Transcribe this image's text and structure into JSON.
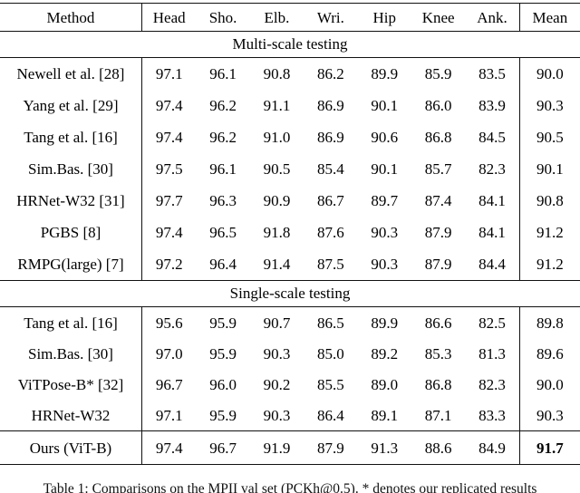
{
  "table": {
    "columns": [
      "Method",
      "Head",
      "Sho.",
      "Elb.",
      "Wri.",
      "Hip",
      "Knee",
      "Ank.",
      "Mean"
    ],
    "sections": [
      {
        "title": "Multi-scale testing",
        "rows": [
          {
            "method": "Newell et al. [28]",
            "values": [
              "97.1",
              "96.1",
              "90.8",
              "86.2",
              "89.9",
              "85.9",
              "83.5"
            ],
            "mean": "90.0"
          },
          {
            "method": "Yang et al. [29]",
            "values": [
              "97.4",
              "96.2",
              "91.1",
              "86.9",
              "90.1",
              "86.0",
              "83.9"
            ],
            "mean": "90.3"
          },
          {
            "method": "Tang et al. [16]",
            "values": [
              "97.4",
              "96.2",
              "91.0",
              "86.9",
              "90.6",
              "86.8",
              "84.5"
            ],
            "mean": "90.5"
          },
          {
            "method": "Sim.Bas. [30]",
            "values": [
              "97.5",
              "96.1",
              "90.5",
              "85.4",
              "90.1",
              "85.7",
              "82.3"
            ],
            "mean": "90.1"
          },
          {
            "method": "HRNet-W32 [31]",
            "values": [
              "97.7",
              "96.3",
              "90.9",
              "86.7",
              "89.7",
              "87.4",
              "84.1"
            ],
            "mean": "90.8"
          },
          {
            "method": "PGBS [8]",
            "values": [
              "97.4",
              "96.5",
              "91.8",
              "87.6",
              "90.3",
              "87.9",
              "84.1"
            ],
            "mean": "91.2"
          },
          {
            "method": "RMPG(large) [7]",
            "values": [
              "97.2",
              "96.4",
              "91.4",
              "87.5",
              "90.3",
              "87.9",
              "84.4"
            ],
            "mean": "91.2"
          }
        ]
      },
      {
        "title": "Single-scale testing",
        "rows": [
          {
            "method": "Tang et al. [16]",
            "values": [
              "95.6",
              "95.9",
              "90.7",
              "86.5",
              "89.9",
              "86.6",
              "82.5"
            ],
            "mean": "89.8"
          },
          {
            "method": "Sim.Bas. [30]",
            "values": [
              "97.0",
              "95.9",
              "90.3",
              "85.0",
              "89.2",
              "85.3",
              "81.3"
            ],
            "mean": "89.6"
          },
          {
            "method": "ViTPose-B* [32]",
            "values": [
              "96.7",
              "96.0",
              "90.2",
              "85.5",
              "89.0",
              "86.8",
              "82.3"
            ],
            "mean": "90.0"
          },
          {
            "method": "HRNet-W32",
            "values": [
              "97.1",
              "95.9",
              "90.3",
              "86.4",
              "89.1",
              "87.1",
              "83.3"
            ],
            "mean": "90.3"
          }
        ]
      }
    ],
    "final_row": {
      "method": "Ours (ViT-B)",
      "values": [
        "97.4",
        "96.7",
        "91.9",
        "87.9",
        "91.3",
        "88.6",
        "84.9"
      ],
      "mean": "91.7",
      "mean_bold": true
    }
  },
  "caption": "Table 1: Comparisons on the MPII val set (PCKh@0.5). * denotes our replicated results"
}
